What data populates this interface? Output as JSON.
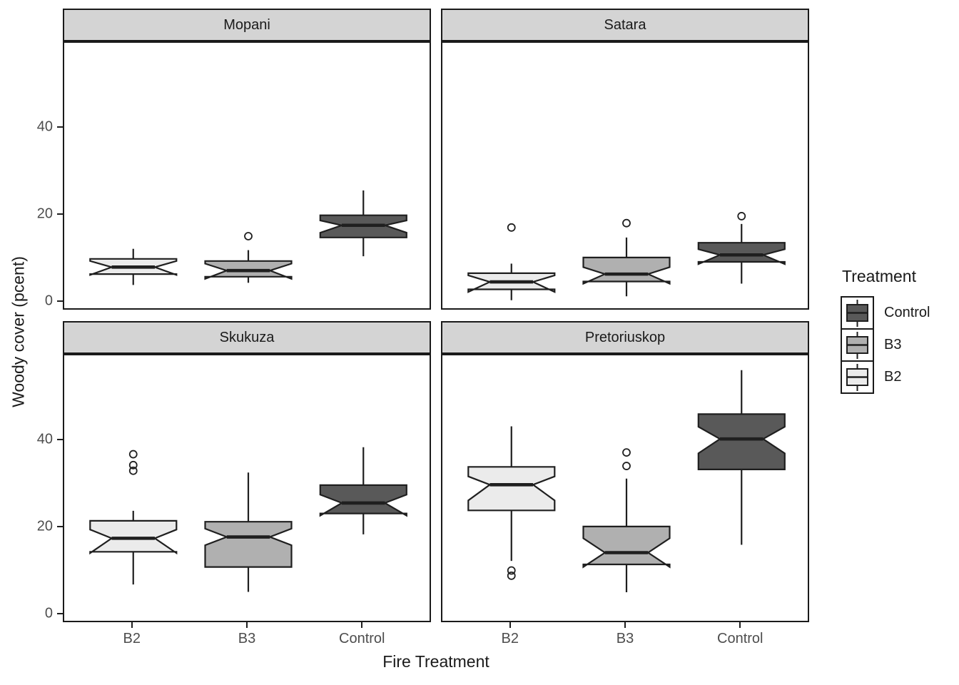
{
  "axes": {
    "y_label": "Woody cover (pcent)",
    "x_label": "Fire Treatment",
    "y_ticks": [
      40,
      20,
      0
    ],
    "x_categories": [
      "B2",
      "B3",
      "Control"
    ]
  },
  "legend": {
    "title": "Treatment",
    "items": [
      {
        "label": "Control",
        "color": "#595959"
      },
      {
        "label": "B3",
        "color": "#b0b0b0"
      },
      {
        "label": "B2",
        "color": "#ebebeb"
      }
    ]
  },
  "style_colors": {
    "ink": "#1f1f1f",
    "strip_fill": "#d4d4d4",
    "tick_label": "#4d4d4d"
  },
  "chart_data": {
    "type": "boxplot",
    "notched": true,
    "ylim": [
      -2,
      59.6
    ],
    "y_ticks": [
      0,
      20,
      40
    ],
    "ylabel": "Woody cover (pcent)",
    "xlabel": "Fire Treatment",
    "categories": [
      "B2",
      "B3",
      "Control"
    ],
    "fills": {
      "B2": "#ebebeb",
      "B3": "#b0b0b0",
      "Control": "#595959"
    },
    "facets": [
      {
        "name": "Mopani",
        "boxes": [
          {
            "treatment": "B2",
            "whisker_low": 4.0,
            "q1": 6.5,
            "median": 8.1,
            "q3": 10.0,
            "whisker_high": 12.3,
            "notch_low": 6.3,
            "notch_high": 9.5,
            "outliers": []
          },
          {
            "treatment": "B3",
            "whisker_low": 4.5,
            "q1": 5.9,
            "median": 7.3,
            "q3": 9.5,
            "whisker_high": 12.0,
            "notch_low": 5.4,
            "notch_high": 8.9,
            "outliers": [
              15.2
            ]
          },
          {
            "treatment": "Control",
            "whisker_low": 10.6,
            "q1": 14.9,
            "median": 17.7,
            "q3": 20.0,
            "whisker_high": 25.7,
            "notch_low": 16.0,
            "notch_high": 18.8,
            "outliers": []
          }
        ]
      },
      {
        "name": "Satara",
        "boxes": [
          {
            "treatment": "B2",
            "whisker_low": 0.5,
            "q1": 3.0,
            "median": 4.7,
            "q3": 6.7,
            "whisker_high": 8.9,
            "notch_low": 2.4,
            "notch_high": 6.2,
            "outliers": [
              17.2
            ]
          },
          {
            "treatment": "B3",
            "whisker_low": 1.4,
            "q1": 4.8,
            "median": 6.5,
            "q3": 10.3,
            "whisker_high": 14.9,
            "notch_low": 4.3,
            "notch_high": 8.1,
            "outliers": [
              18.2
            ]
          },
          {
            "treatment": "Control",
            "whisker_low": 4.3,
            "q1": 9.3,
            "median": 10.9,
            "q3": 13.7,
            "whisker_high": 18.0,
            "notch_low": 8.8,
            "notch_high": 12.2,
            "outliers": [
              19.8
            ]
          }
        ]
      },
      {
        "name": "Skukuza",
        "boxes": [
          {
            "treatment": "B2",
            "whisker_low": 7.0,
            "q1": 14.5,
            "median": 17.6,
            "q3": 21.6,
            "whisker_high": 23.9,
            "notch_low": 14.2,
            "notch_high": 19.6,
            "outliers": [
              33.1,
              34.4,
              36.9
            ]
          },
          {
            "treatment": "B3",
            "whisker_low": 5.3,
            "q1": 11.0,
            "median": 17.9,
            "q3": 21.4,
            "whisker_high": 32.7,
            "notch_low": 16.0,
            "notch_high": 19.8,
            "outliers": []
          },
          {
            "treatment": "Control",
            "whisker_low": 18.5,
            "q1": 23.3,
            "median": 25.7,
            "q3": 29.8,
            "whisker_high": 38.5,
            "notch_low": 22.8,
            "notch_high": 27.6,
            "outliers": []
          }
        ]
      },
      {
        "name": "Pretoriuskop",
        "boxes": [
          {
            "treatment": "B2",
            "whisker_low": 12.4,
            "q1": 24.0,
            "median": 29.9,
            "q3": 34.0,
            "whisker_high": 43.3,
            "notch_low": 26.3,
            "notch_high": 31.8,
            "outliers": [
              9.0,
              10.2
            ]
          },
          {
            "treatment": "B3",
            "whisker_low": 5.2,
            "q1": 11.6,
            "median": 14.3,
            "q3": 20.3,
            "whisker_high": 31.3,
            "notch_low": 11.0,
            "notch_high": 17.6,
            "outliers": [
              34.2,
              37.3
            ]
          },
          {
            "treatment": "Control",
            "whisker_low": 16.1,
            "q1": 33.4,
            "median": 40.4,
            "q3": 46.1,
            "whisker_high": 56.2,
            "notch_low": 37.1,
            "notch_high": 43.2,
            "outliers": []
          }
        ]
      }
    ]
  }
}
